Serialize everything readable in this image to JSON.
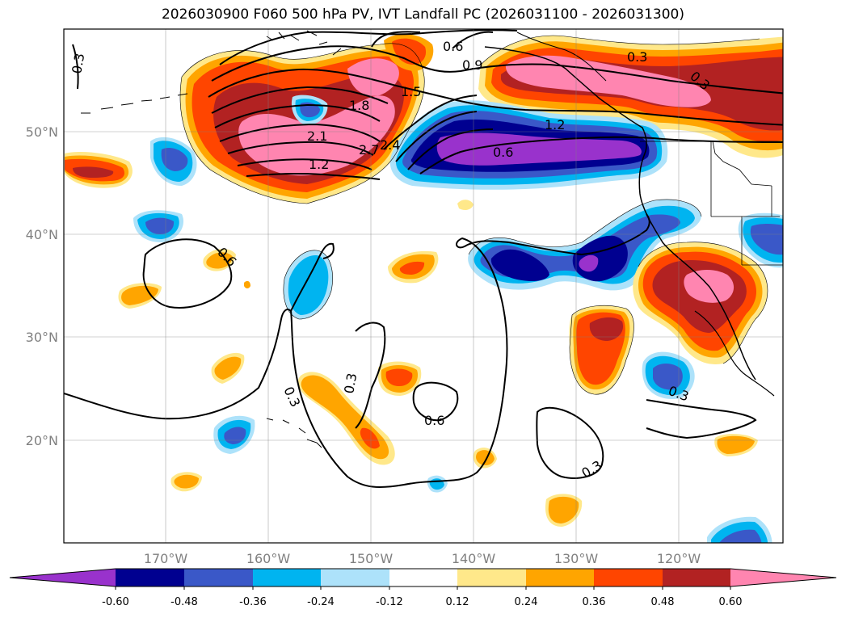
{
  "title": "2026030900 F060 500 hPa PV, IVT Landfall PC (2026031100 - 2026031300)",
  "axes": {
    "lon_labels": [
      "170°W",
      "160°W",
      "150°W",
      "140°W",
      "130°W",
      "120°W"
    ],
    "lat_labels": [
      "50°N",
      "40°N",
      "30°N",
      "20°N"
    ]
  },
  "contour_labels": [
    "0.3",
    "0.6",
    "0.9",
    "1.5",
    "1.8",
    "2.1",
    "2.4",
    "2.7",
    "1.2",
    "0.6",
    "1.2",
    "0.3",
    "0.3",
    "0.6",
    "0.3",
    "0.3",
    "0.6",
    "0.3",
    "0.3"
  ],
  "colorbar": {
    "ticks": [
      "-0.60",
      "-0.48",
      "-0.36",
      "-0.24",
      "-0.12",
      "0.12",
      "0.24",
      "0.36",
      "0.48",
      "0.60"
    ],
    "colors": [
      "#9932cc",
      "#000090",
      "#3a58c8",
      "#00b4f0",
      "#ade2fa",
      "#ffffff",
      "#ffe88a",
      "#ffa500",
      "#ff4500",
      "#b22222",
      "#ff85b0"
    ]
  },
  "palette": {
    "pink": "#ff85b0",
    "darkred": "#b22222",
    "orangered": "#ff4500",
    "orange": "#ffa500",
    "yellow": "#ffe88a",
    "purple": "#9932cc",
    "navy": "#000090",
    "blue": "#3a58c8",
    "cyan": "#00b4f0",
    "lightblue": "#ade2fa"
  }
}
